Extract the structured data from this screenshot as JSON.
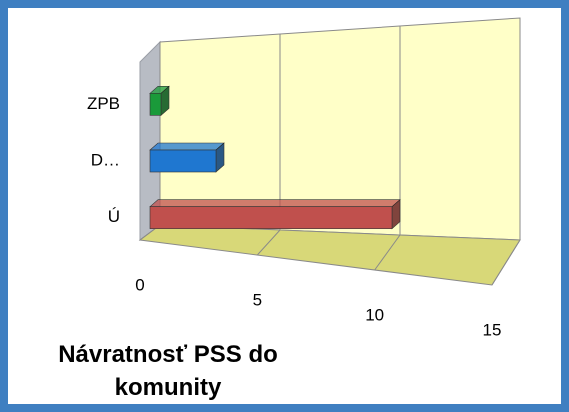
{
  "chart_data": {
    "type": "bar3d_horizontal",
    "title": "Návratnosť PSS do komunity",
    "categories": [
      "Ú",
      "D…",
      "ZPB"
    ],
    "values": [
      11,
      3,
      0.5
    ],
    "colors": [
      "#c0504d",
      "#1f77d0",
      "#1a9a3a"
    ],
    "xlim": [
      0,
      15
    ],
    "xticks": [
      0,
      5,
      10,
      15
    ],
    "grid": true
  }
}
